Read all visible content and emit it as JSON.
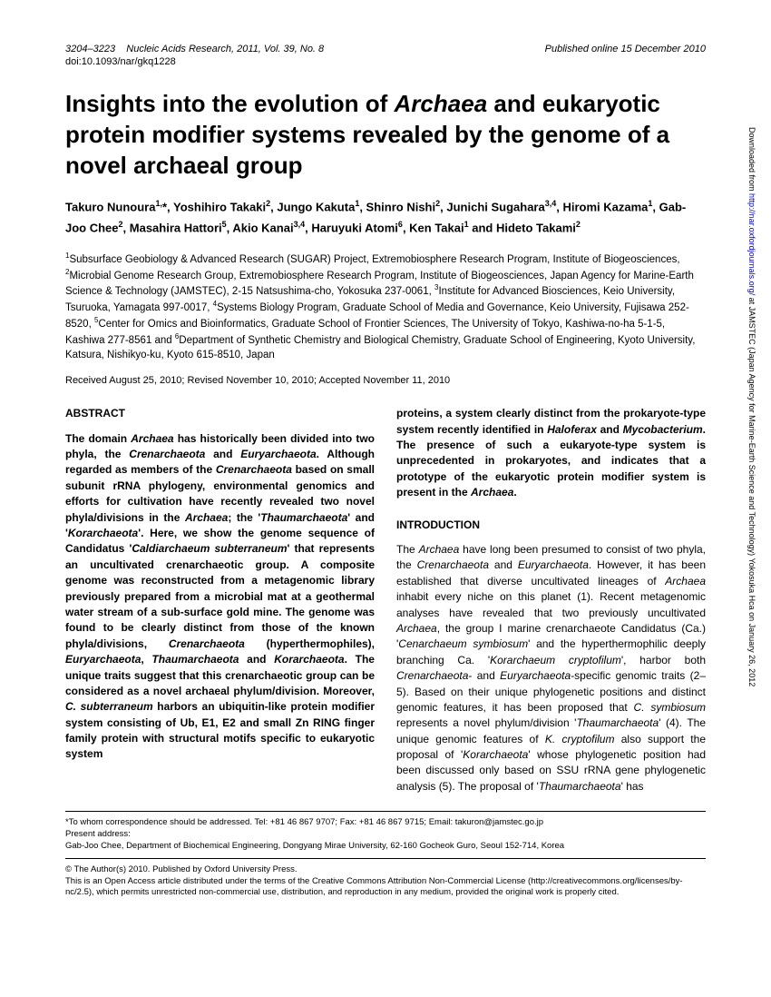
{
  "header": {
    "pages": "3204–3223",
    "journal": "Nucleic Acids Research, 2011, Vol. 39, No. 8",
    "published": "Published online 15 December 2010",
    "doi": "doi:10.1093/nar/gkq1228"
  },
  "title_pre": "Insights into the evolution of ",
  "title_italic": "Archaea",
  "title_post": " and eukaryotic protein modifier systems revealed by the genome of a novel archaeal group",
  "authors_html": "Takuro Nunoura<sup>1,</sup>*, Yoshihiro Takaki<sup>2</sup>, Jungo Kakuta<sup>1</sup>, Shinro Nishi<sup>2</sup>, Junichi Sugahara<sup>3,4</sup>, Hiromi Kazama<sup>1</sup>, Gab-Joo Chee<sup>2</sup>, Masahira Hattori<sup>5</sup>, Akio Kanai<sup>3,4</sup>, Haruyuki Atomi<sup>6</sup>, Ken Takai<sup>1</sup> and Hideto Takami<sup>2</sup>",
  "affiliations_html": "<sup>1</sup>Subsurface Geobiology & Advanced Research (SUGAR) Project, Extremobiosphere Research Program, Institute of Biogeosciences, <sup>2</sup>Microbial Genome Research Group, Extremobiosphere Research Program, Institute of Biogeosciences, Japan Agency for Marine-Earth Science & Technology (JAMSTEC), 2-15 Natsushima-cho, Yokosuka 237-0061, <sup>3</sup>Institute for Advanced Biosciences, Keio University, Tsuruoka, Yamagata 997-0017, <sup>4</sup>Systems Biology Program, Graduate School of Media and Governance, Keio University, Fujisawa 252-8520, <sup>5</sup>Center for Omics and Bioinformatics, Graduate School of Frontier Sciences, The University of Tokyo, Kashiwa-no-ha 5-1-5, Kashiwa 277-8561 and <sup>6</sup>Department of Synthetic Chemistry and Biological Chemistry, Graduate School of Engineering, Kyoto University, Katsura, Nishikyo-ku, Kyoto 615-8510, Japan",
  "dates": "Received August 25, 2010; Revised November 10, 2010; Accepted November 11, 2010",
  "abstract_head": "ABSTRACT",
  "abstract_html": "The domain <span class='italic'>Archaea</span> has historically been divided into two phyla, the <span class='italic'>Crenarchaeota</span> and <span class='italic'>Euryarchaeota</span>. Although regarded as members of the <span class='italic'>Crenarchaeota</span> based on small subunit rRNA phylogeny, environmental genomics and efforts for cultivation have recently revealed two novel phyla/divisions in the <span class='italic'>Archaea</span>; the '<span class='italic'>Thaumarchaeota</span>' and '<span class='italic'>Korarchaeota</span>'. Here, we show the genome sequence of Candidatus '<span class='italic'>Caldiarchaeum subterraneum</span>' that represents an uncultivated crenarchaeotic group. A composite genome was reconstructed from a metagenomic library previously prepared from a microbial mat at a geothermal water stream of a sub-surface gold mine. The genome was found to be clearly distinct from those of the known phyla/divisions, <span class='italic'>Crenarchaeota</span> (hyperthermophiles), <span class='italic'>Euryarchaeota</span>, <span class='italic'>Thaumarchaeota</span> and <span class='italic'>Korarchaeota</span>. The unique traits suggest that this crenarchaeotic group can be considered as a novel archaeal phylum/division. Moreover, <span class='italic'>C. subterraneum</span> harbors an ubiquitin-like protein modifier system consisting of Ub, E1, E2 and small Zn RING finger family protein with structural motifs specific to eukaryotic system",
  "col2_top_html": "proteins, a system clearly distinct from the prokaryote-type system recently identified in <span class='italic'>Haloferax</span> and <span class='italic'>Mycobacterium</span>. The presence of such a eukaryote-type system is unprecedented in prokaryotes, and indicates that a prototype of the eukaryotic protein modifier system is present in the <span class='italic'>Archaea</span>.",
  "intro_head": "INTRODUCTION",
  "intro_html": "The <span class='italic'>Archaea</span> have long been presumed to consist of two phyla, the <span class='italic'>Crenarchaeota</span> and <span class='italic'>Euryarchaeota</span>. However, it has been established that diverse uncultivated lineages of <span class='italic'>Archaea</span> inhabit every niche on this planet (1). Recent metagenomic analyses have revealed that two previously uncultivated <span class='italic'>Archaea</span>, the group I marine crenarchaeote Candidatus (Ca.) '<span class='italic'>Cenarchaeum symbiosum</span>' and the hyperthermophilic deeply branching Ca. '<span class='italic'>Korarchaeum cryptofilum</span>', harbor both <span class='italic'>Crenarchaeota</span>- and <span class='italic'>Euryarchaeota</span>-specific genomic traits (2–5). Based on their unique phylogenetic positions and distinct genomic features, it has been proposed that <span class='italic'>C. symbiosum</span> represents a novel phylum/division '<span class='italic'>Thaumarchaeota</span>' (4). The unique genomic features of <span class='italic'>K. cryptofilum</span> also support the proposal of '<span class='italic'>Korarchaeota</span>' whose phylogenetic position had been discussed only based on SSU rRNA gene phylogenetic analysis (5). The proposal of '<span class='italic'>Thaumarchaeota</span>' has",
  "footer": {
    "correspondence": "*To whom correspondence should be addressed. Tel: +81 46 867 9707; Fax: +81 46 867 9715; Email: takuron@jamstec.go.jp",
    "present_label": "Present address:",
    "present_text": "Gab-Joo Chee, Department of Biochemical Engineering, Dongyang Mirae University, 62-160 Gocheok Guro, Seoul 152-714, Korea",
    "copyright": "© The Author(s) 2010. Published by Oxford University Press.",
    "license": "This is an Open Access article distributed under the terms of the Creative Commons Attribution Non-Commercial License (http://creativecommons.org/licenses/by-nc/2.5), which permits unrestricted non-commercial use, distribution, and reproduction in any medium, provided the original work is properly cited."
  },
  "sidebar": {
    "pre": "Downloaded from ",
    "link": "http://nar.oxfordjournals.org/",
    "post": " at JAMSTEC (Japan Agency for Marine-Earth Science and Technology) Yokosuka Hca on January 26, 2012"
  }
}
